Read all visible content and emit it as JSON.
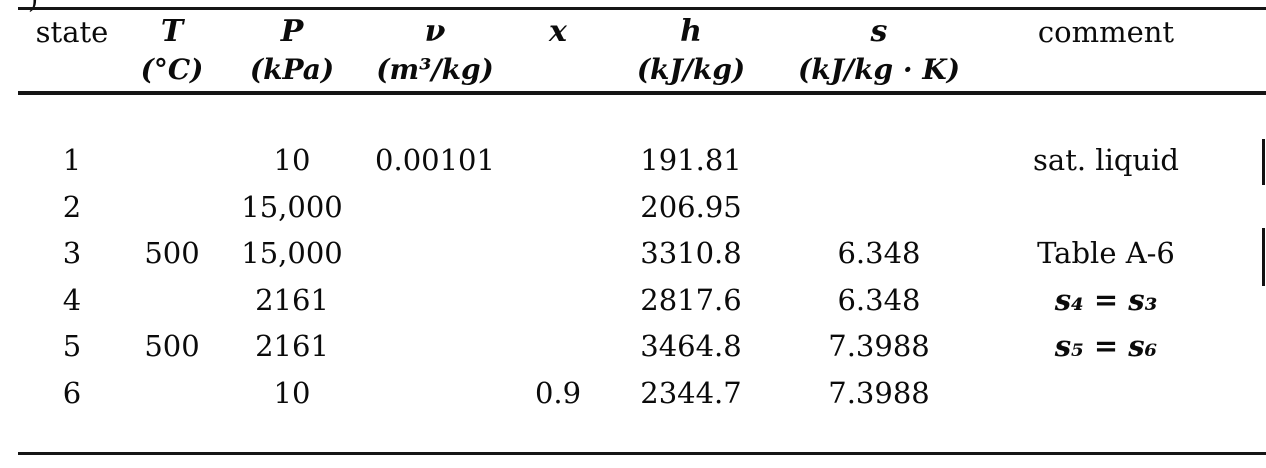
{
  "page": {
    "corner_fragment": ")"
  },
  "table": {
    "header_labels": [
      "state",
      "T",
      "P",
      "ν",
      "x",
      "h",
      "s",
      "comment"
    ],
    "header_units": [
      "",
      "(°C)",
      "(kPa)",
      "(m³/kg)",
      "",
      "(kJ/kg)",
      "(kJ/kg · K)",
      ""
    ],
    "rows": [
      {
        "state": "1",
        "T": "",
        "P": "10",
        "v": "0.00101",
        "x": "",
        "h": "191.81",
        "s": "",
        "comment": "sat. liquid"
      },
      {
        "state": "2",
        "T": "",
        "P": "15,000",
        "v": "",
        "x": "",
        "h": "206.95",
        "s": "",
        "comment": ""
      },
      {
        "state": "3",
        "T": "500",
        "P": "15,000",
        "v": "",
        "x": "",
        "h": "3310.8",
        "s": "6.348",
        "comment": "Table A-6"
      },
      {
        "state": "4",
        "T": "",
        "P": "2161",
        "v": "",
        "x": "",
        "h": "2817.6",
        "s": "6.348",
        "comment": "s₄ = s₃"
      },
      {
        "state": "5",
        "T": "500",
        "P": "2161",
        "v": "",
        "x": "",
        "h": "3464.8",
        "s": "7.3988",
        "comment": "s₅ = s₆"
      },
      {
        "state": "6",
        "T": "",
        "P": "10",
        "v": "",
        "x": "0.9",
        "h": "2344.7",
        "s": "7.3988",
        "comment": ""
      }
    ]
  }
}
